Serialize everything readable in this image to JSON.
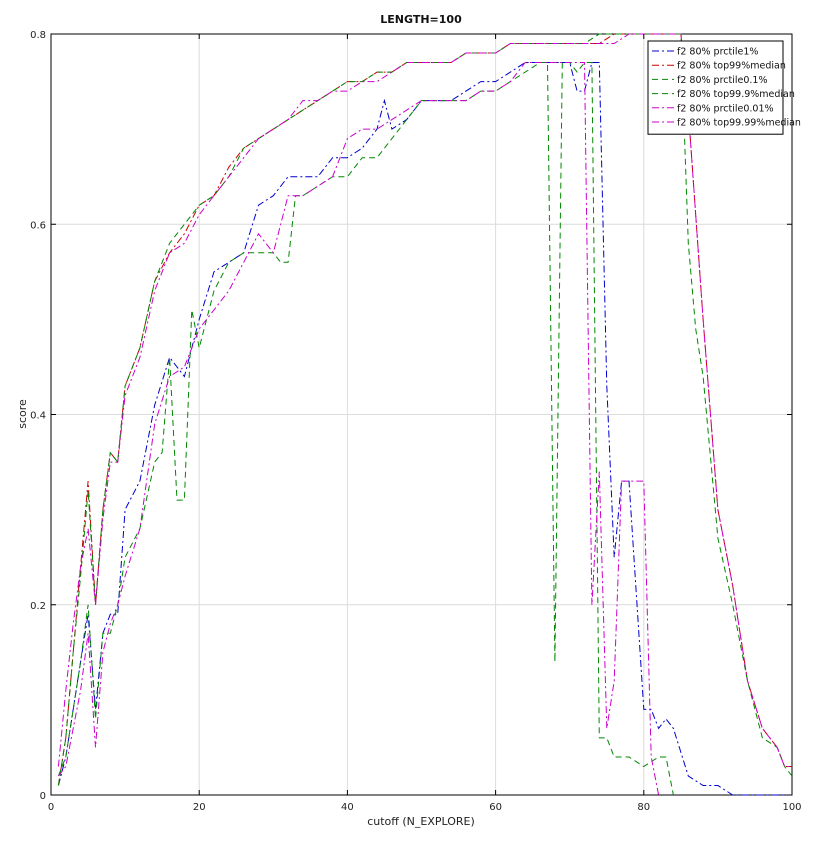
{
  "chart_data": {
    "type": "line",
    "title": "LENGTH=100",
    "xlabel": "cutoff (N_EXPLORE)",
    "ylabel": "score",
    "xlim": [
      0,
      100
    ],
    "ylim": [
      0,
      0.8
    ],
    "xticks": [
      "0",
      "20",
      "40",
      "60",
      "80",
      "100"
    ],
    "yticks": [
      "0",
      "0.2",
      "0.4",
      "0.6",
      "0.8"
    ],
    "grid": true,
    "legend_position": "top-right",
    "series": [
      {
        "name": "f2 80% prctile1%",
        "color": "#0000cc",
        "dash": "dashdot",
        "x": [
          1,
          2,
          3,
          4,
          5,
          6,
          7,
          8,
          9,
          10,
          12,
          14,
          16,
          18,
          20,
          22,
          24,
          26,
          28,
          30,
          32,
          34,
          36,
          38,
          40,
          42,
          44,
          45,
          46,
          48,
          50,
          52,
          54,
          56,
          58,
          60,
          62,
          64,
          66,
          68,
          70,
          71,
          72,
          73,
          74,
          75,
          76,
          77,
          78,
          80,
          81,
          82,
          83,
          84,
          86,
          88,
          90,
          92,
          100
        ],
        "y": [
          0.01,
          0.04,
          0.09,
          0.14,
          0.19,
          0.09,
          0.17,
          0.19,
          0.19,
          0.3,
          0.33,
          0.41,
          0.46,
          0.44,
          0.5,
          0.55,
          0.56,
          0.57,
          0.62,
          0.63,
          0.65,
          0.65,
          0.65,
          0.67,
          0.67,
          0.68,
          0.7,
          0.73,
          0.7,
          0.71,
          0.73,
          0.73,
          0.73,
          0.74,
          0.75,
          0.75,
          0.76,
          0.77,
          0.77,
          0.77,
          0.77,
          0.74,
          0.74,
          0.77,
          0.77,
          0.43,
          0.25,
          0.33,
          0.33,
          0.09,
          0.09,
          0.07,
          0.08,
          0.07,
          0.02,
          0.01,
          0.01,
          0.0,
          0.0
        ]
      },
      {
        "name": "f2 80% top99%median",
        "color": "#cc0000",
        "dash": "dashdot",
        "x": [
          1,
          2,
          3,
          4,
          5,
          6,
          7,
          8,
          9,
          10,
          12,
          14,
          16,
          18,
          20,
          22,
          24,
          26,
          28,
          30,
          32,
          34,
          36,
          38,
          40,
          42,
          44,
          46,
          48,
          50,
          52,
          54,
          56,
          58,
          60,
          62,
          64,
          66,
          68,
          70,
          72,
          74,
          76,
          78,
          80,
          82,
          84,
          85,
          86,
          88,
          90,
          92,
          94,
          96,
          98,
          99,
          100
        ],
        "y": [
          0.01,
          0.06,
          0.15,
          0.24,
          0.33,
          0.2,
          0.3,
          0.36,
          0.35,
          0.43,
          0.47,
          0.54,
          0.57,
          0.59,
          0.62,
          0.63,
          0.66,
          0.68,
          0.69,
          0.7,
          0.71,
          0.72,
          0.73,
          0.74,
          0.75,
          0.75,
          0.76,
          0.76,
          0.77,
          0.77,
          0.77,
          0.77,
          0.78,
          0.78,
          0.78,
          0.79,
          0.79,
          0.79,
          0.79,
          0.79,
          0.79,
          0.79,
          0.8,
          0.8,
          0.8,
          0.8,
          0.8,
          0.8,
          0.72,
          0.5,
          0.3,
          0.22,
          0.12,
          0.07,
          0.05,
          0.03,
          0.03
        ]
      },
      {
        "name": "f2 80% prctile0.1%",
        "color": "#008800",
        "dash": "dash",
        "x": [
          1,
          2,
          3,
          4,
          5,
          6,
          7,
          8,
          9,
          10,
          12,
          14,
          15,
          16,
          17,
          18,
          19,
          20,
          22,
          24,
          26,
          28,
          30,
          31,
          32,
          33,
          34,
          36,
          38,
          40,
          42,
          44,
          46,
          48,
          50,
          52,
          54,
          56,
          58,
          60,
          62,
          64,
          66,
          67,
          68,
          69,
          70,
          71,
          72,
          73,
          74,
          75,
          76,
          78,
          80,
          82,
          83,
          84
        ],
        "y": [
          0.02,
          0.04,
          0.09,
          0.14,
          0.2,
          0.08,
          0.17,
          0.17,
          0.2,
          0.25,
          0.28,
          0.35,
          0.36,
          0.46,
          0.31,
          0.31,
          0.51,
          0.47,
          0.53,
          0.56,
          0.57,
          0.57,
          0.57,
          0.56,
          0.56,
          0.63,
          0.63,
          0.64,
          0.65,
          0.65,
          0.67,
          0.67,
          0.69,
          0.71,
          0.73,
          0.73,
          0.73,
          0.73,
          0.74,
          0.74,
          0.75,
          0.76,
          0.77,
          0.77,
          0.14,
          0.77,
          0.77,
          0.76,
          0.77,
          0.77,
          0.06,
          0.06,
          0.04,
          0.04,
          0.03,
          0.04,
          0.04,
          0.0
        ]
      },
      {
        "name": "f2 80% top99.9%median",
        "color": "#008800",
        "dash": "dash",
        "x": [
          1,
          2,
          3,
          4,
          5,
          6,
          7,
          8,
          9,
          10,
          12,
          14,
          16,
          18,
          20,
          22,
          24,
          26,
          28,
          30,
          32,
          34,
          36,
          38,
          40,
          42,
          44,
          46,
          48,
          50,
          52,
          54,
          56,
          58,
          60,
          62,
          64,
          66,
          68,
          70,
          72,
          74,
          76,
          78,
          80,
          82,
          84,
          85,
          86,
          87,
          88,
          90,
          92,
          94,
          96,
          98,
          99,
          100
        ],
        "y": [
          0.01,
          0.06,
          0.15,
          0.23,
          0.32,
          0.2,
          0.3,
          0.36,
          0.35,
          0.43,
          0.47,
          0.54,
          0.58,
          0.6,
          0.62,
          0.63,
          0.65,
          0.68,
          0.69,
          0.7,
          0.71,
          0.72,
          0.73,
          0.74,
          0.75,
          0.75,
          0.76,
          0.76,
          0.77,
          0.77,
          0.77,
          0.77,
          0.78,
          0.78,
          0.78,
          0.79,
          0.79,
          0.79,
          0.79,
          0.79,
          0.79,
          0.8,
          0.8,
          0.8,
          0.8,
          0.8,
          0.8,
          0.8,
          0.58,
          0.49,
          0.44,
          0.27,
          0.2,
          0.12,
          0.06,
          0.05,
          0.03,
          0.02
        ]
      },
      {
        "name": "f2 80% prctile0.01%",
        "color": "#cc00cc",
        "dash": "dashdot",
        "x": [
          1,
          2,
          3,
          4,
          5,
          6,
          7,
          8,
          9,
          10,
          12,
          14,
          16,
          18,
          20,
          22,
          24,
          26,
          28,
          30,
          32,
          34,
          36,
          38,
          40,
          42,
          44,
          46,
          48,
          50,
          52,
          54,
          56,
          58,
          60,
          62,
          64,
          66,
          68,
          70,
          72,
          73,
          74,
          75,
          76,
          77,
          78,
          80,
          81,
          82
        ],
        "y": [
          0.02,
          0.03,
          0.07,
          0.11,
          0.17,
          0.05,
          0.15,
          0.18,
          0.2,
          0.23,
          0.28,
          0.39,
          0.44,
          0.45,
          0.49,
          0.51,
          0.53,
          0.56,
          0.59,
          0.57,
          0.63,
          0.63,
          0.64,
          0.65,
          0.69,
          0.7,
          0.7,
          0.71,
          0.72,
          0.73,
          0.73,
          0.73,
          0.73,
          0.74,
          0.74,
          0.75,
          0.77,
          0.77,
          0.77,
          0.77,
          0.77,
          0.2,
          0.34,
          0.07,
          0.12,
          0.33,
          0.33,
          0.33,
          0.04,
          0.0
        ]
      },
      {
        "name": "f2 80% top99.99%median",
        "color": "#cc00cc",
        "dash": "dashdot",
        "x": [
          1,
          2,
          3,
          4,
          5,
          6,
          7,
          8,
          9,
          10,
          12,
          14,
          16,
          18,
          20,
          22,
          24,
          26,
          28,
          30,
          32,
          34,
          36,
          38,
          40,
          42,
          44,
          46,
          48,
          50,
          52,
          54,
          56,
          58,
          60,
          62,
          64,
          66,
          68,
          70,
          72,
          74,
          76,
          78,
          80,
          82,
          84,
          85,
          86,
          88,
          90,
          92,
          94,
          96,
          98,
          99,
          100
        ],
        "y": [
          0.03,
          0.11,
          0.18,
          0.24,
          0.28,
          0.2,
          0.29,
          0.35,
          0.35,
          0.42,
          0.46,
          0.53,
          0.57,
          0.58,
          0.61,
          0.63,
          0.65,
          0.67,
          0.69,
          0.7,
          0.71,
          0.73,
          0.73,
          0.74,
          0.74,
          0.75,
          0.75,
          0.76,
          0.77,
          0.77,
          0.77,
          0.77,
          0.78,
          0.78,
          0.78,
          0.79,
          0.79,
          0.79,
          0.79,
          0.79,
          0.79,
          0.79,
          0.79,
          0.8,
          0.8,
          0.8,
          0.8,
          0.8,
          0.72,
          0.5,
          0.3,
          0.22,
          0.12,
          0.07,
          0.05,
          0.03,
          0.03
        ]
      }
    ]
  }
}
